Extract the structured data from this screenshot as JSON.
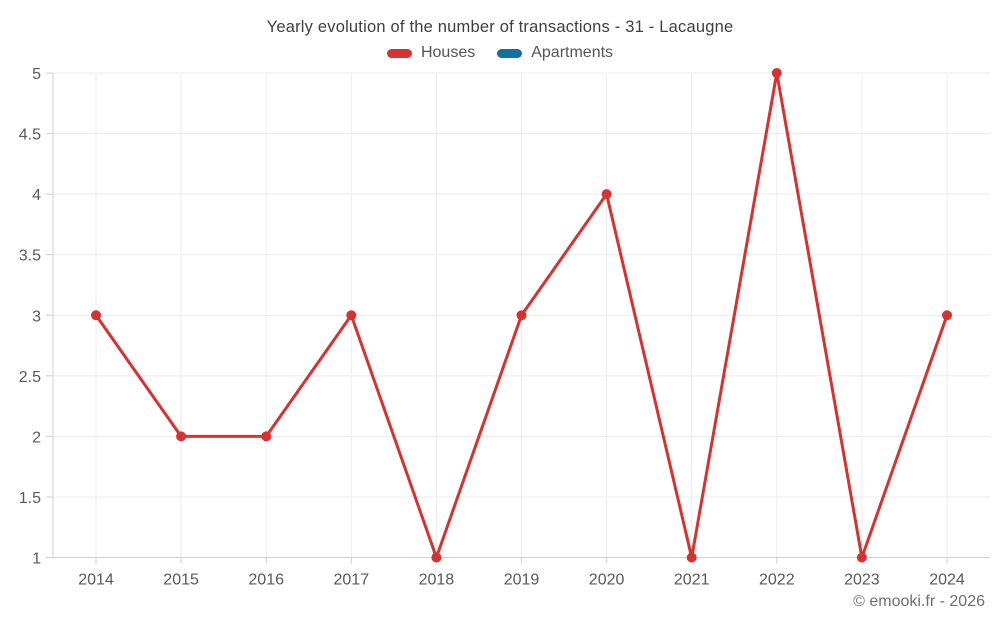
{
  "header": {
    "title": "Yearly evolution of the number of transactions - 31 - Lacaugne"
  },
  "legend": {
    "items": [
      {
        "label": "Houses",
        "color": "#d63230"
      },
      {
        "label": "Apartments",
        "color": "#1272a3"
      }
    ]
  },
  "footer": {
    "text": "© emooki.fr - 2026"
  },
  "colors": {
    "grid": "#ececec",
    "axis": "#cfcfcf",
    "tick_label": "#595959",
    "title_text": "#3f3f3f",
    "legend_text": "#555555",
    "footer_text": "#6f6f6f",
    "background": "#ffffff",
    "houses_series": "#d63230",
    "apartments_series": "#1272a3"
  },
  "chart_data": {
    "type": "line",
    "title": "Yearly evolution of the number of transactions - 31 - Lacaugne",
    "x": [
      "2014",
      "2015",
      "2016",
      "2017",
      "2018",
      "2019",
      "2020",
      "2021",
      "2022",
      "2023",
      "2024"
    ],
    "series": [
      {
        "name": "Houses",
        "color": "#d63230",
        "values": [
          3,
          2,
          2,
          3,
          1,
          3,
          4,
          1,
          5,
          1,
          3
        ]
      },
      {
        "name": "Apartments",
        "color": "#1272a3",
        "values": []
      }
    ],
    "xlabel": "",
    "ylabel": "",
    "ylim": [
      1,
      5
    ],
    "ytick_step": 0.5,
    "yticklabels": [
      "1",
      "1.5",
      "2",
      "2.5",
      "3",
      "3.5",
      "4",
      "4.5",
      "5"
    ],
    "grid": true,
    "legend_position": "top"
  }
}
